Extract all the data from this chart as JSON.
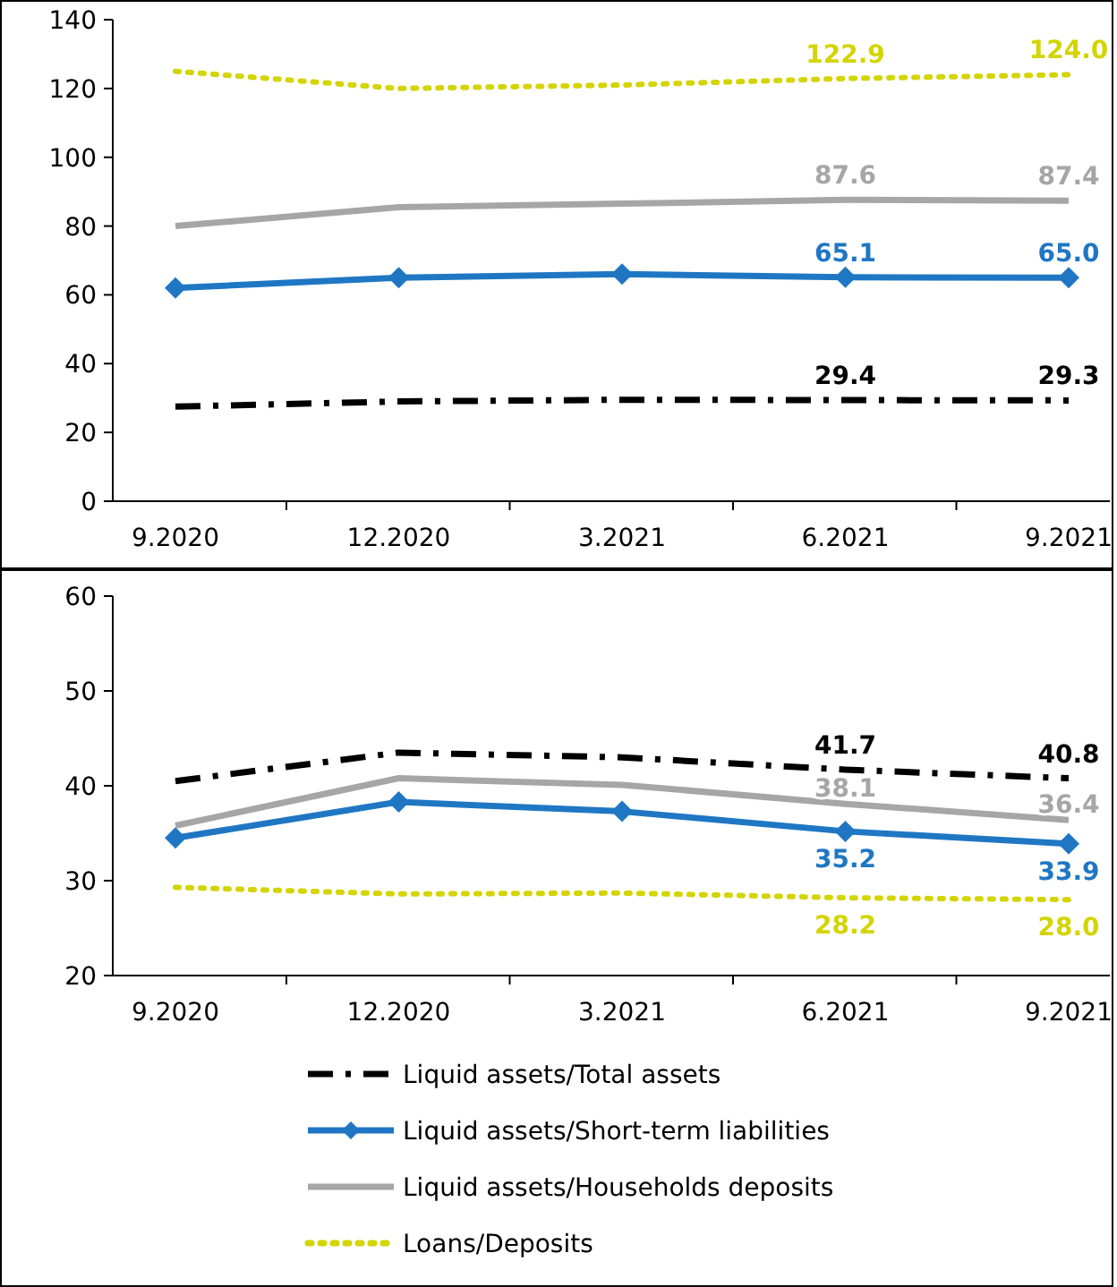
{
  "chart_data": [
    {
      "type": "line",
      "categories": [
        "9.2020",
        "12.2020",
        "3.2021",
        "6.2021",
        "9.2021"
      ],
      "ylim": [
        0,
        140
      ],
      "yticks": [
        0,
        20,
        40,
        60,
        80,
        100,
        120,
        140
      ],
      "grid": false,
      "legend": false,
      "series": [
        {
          "color": "#000000",
          "line_style": "dashed",
          "marker": "none",
          "values": [
            27.5,
            29,
            29.5,
            29.4,
            29.3
          ],
          "value_labels": [
            null,
            null,
            null,
            "29.4",
            "29.3"
          ]
        },
        {
          "color": "#1f77c4",
          "line_style": "solid",
          "marker": "diamond",
          "values": [
            62,
            65,
            66,
            65.1,
            65.0
          ],
          "value_labels": [
            null,
            null,
            null,
            "65.1",
            "65.0"
          ]
        },
        {
          "color": "#a6a6a6",
          "line_style": "solid",
          "marker": "none",
          "values": [
            80,
            85.5,
            86.5,
            87.6,
            87.4
          ],
          "value_labels": [
            null,
            null,
            null,
            "87.6",
            "87.4"
          ]
        },
        {
          "color": "#d4d400",
          "line_style": "dotted",
          "marker": "none",
          "values": [
            125,
            120,
            121,
            122.9,
            124.0
          ],
          "value_labels": [
            null,
            null,
            null,
            "122.9",
            "124.0"
          ]
        }
      ]
    },
    {
      "type": "line",
      "categories": [
        "9.2020",
        "12.2020",
        "3.2021",
        "6.2021",
        "9.2021"
      ],
      "ylim": [
        20,
        60
      ],
      "yticks": [
        20,
        30,
        40,
        50,
        60
      ],
      "grid": false,
      "legend": "bottom",
      "series": [
        {
          "name": "Liquid assets/Total assets",
          "color": "#000000",
          "line_style": "dashed",
          "marker": "none",
          "values": [
            40.5,
            43.5,
            43,
            41.7,
            40.8
          ],
          "value_labels": [
            null,
            null,
            null,
            "41.7",
            "40.8"
          ]
        },
        {
          "name": "Liquid assets/Short-term liabilities",
          "color": "#1f77c4",
          "line_style": "solid",
          "marker": "diamond",
          "values": [
            34.5,
            38.3,
            37.3,
            35.2,
            33.9
          ],
          "value_labels": [
            null,
            null,
            null,
            "35.2",
            "33.9"
          ]
        },
        {
          "name": "Liquid assets/Households deposits",
          "color": "#a6a6a6",
          "line_style": "solid",
          "marker": "none",
          "values": [
            35.8,
            40.8,
            40.1,
            38.1,
            36.4
          ],
          "value_labels": [
            null,
            null,
            null,
            "38.1",
            "36.4"
          ]
        },
        {
          "name": "Loans/Deposits",
          "color": "#d4d400",
          "line_style": "dotted",
          "marker": "none",
          "values": [
            29.3,
            28.6,
            28.7,
            28.2,
            28.0
          ],
          "value_labels": [
            null,
            null,
            null,
            "28.2",
            "28.0"
          ]
        }
      ]
    }
  ]
}
